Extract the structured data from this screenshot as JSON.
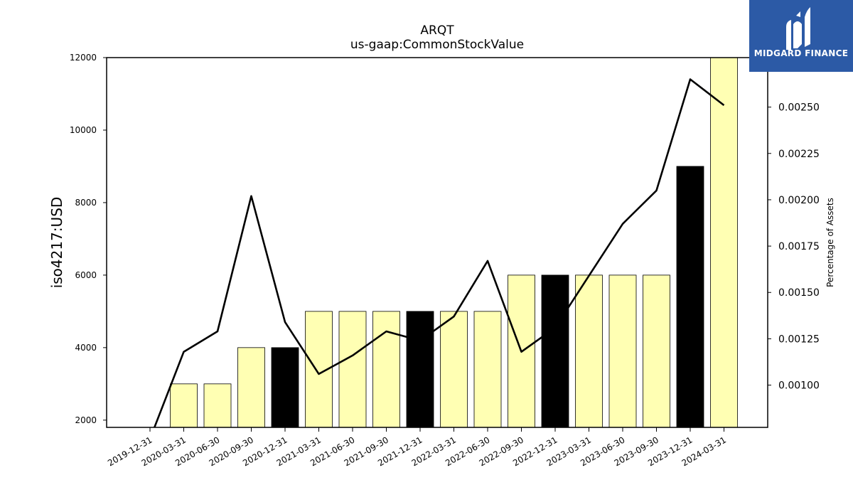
{
  "chart_data": {
    "type": "bar",
    "title": "ARQT",
    "subtitle": "us-gaap:CommonStockValue",
    "ylabel": "iso4217:USD",
    "y2label": "Percentage of Assets",
    "ylim": [
      1800,
      12000
    ],
    "y2lim": [
      0.000772,
      0.002767
    ],
    "yticks": [
      2000,
      4000,
      6000,
      8000,
      10000,
      12000
    ],
    "y2ticks": [
      "0.00100",
      "0.00125",
      "0.00150",
      "0.00175",
      "0.00200",
      "0.00225",
      "0.00250"
    ],
    "categories": [
      "2019-12-31",
      "2020-03-31",
      "2020-06-30",
      "2020-09-30",
      "2020-12-31",
      "2021-03-31",
      "2021-06-30",
      "2021-09-30",
      "2021-12-31",
      "2022-03-31",
      "2022-06-30",
      "2022-09-30",
      "2022-12-31",
      "2023-03-31",
      "2023-06-30",
      "2023-09-30",
      "2023-12-31",
      "2024-03-31"
    ],
    "series": [
      {
        "values": [
          null,
          3000,
          3000,
          4000,
          4000,
          5000,
          5000,
          5000,
          5000,
          5000,
          5000,
          6000,
          6000,
          6000,
          6000,
          6000,
          9000,
          12000
        ],
        "colors": [
          "",
          "#ffffb3",
          "#ffffb3",
          "#ffffb3",
          "#000000",
          "#ffffb3",
          "#ffffb3",
          "#ffffb3",
          "#000000",
          "#ffffb3",
          "#ffffb3",
          "#ffffb3",
          "#000000",
          "#ffffb3",
          "#ffffb3",
          "#ffffb3",
          "#000000",
          "#ffffb3"
        ]
      },
      {
        "type": "line",
        "axis": "right",
        "values": [
          0.00071,
          0.00118,
          0.00129,
          0.00202,
          0.00134,
          0.00106,
          0.00116,
          0.00129,
          0.00124,
          0.00137,
          0.00167,
          0.00118,
          0.00131,
          0.00159,
          0.00187,
          0.00205,
          0.00265,
          0.00251
        ]
      }
    ]
  },
  "logo": {
    "text": "MIDGARD FINANCE",
    "color": "#2c5aa6"
  }
}
